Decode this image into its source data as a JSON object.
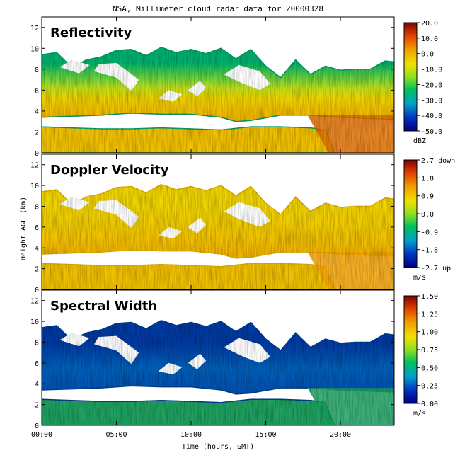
{
  "title": "NSA, Millimeter cloud radar data for 20000328",
  "xlabel": "Time (hours, GMT)",
  "ylabel": "Height AGL (km)",
  "chart_data": [
    {
      "type": "heatmap",
      "title": "Reflectivity",
      "xlabel": "Time (hours, GMT)",
      "ylabel": "Height AGL (km)",
      "x_ticks": [
        "00:00",
        "05:00",
        "10:00",
        "15:00",
        "20:00"
      ],
      "x_tick_values": [
        0,
        5,
        10,
        15,
        20
      ],
      "xlim": [
        0,
        23.6
      ],
      "y_ticks": [
        "0",
        "2",
        "4",
        "6",
        "8",
        "10",
        "12"
      ],
      "y_tick_values": [
        0,
        2,
        4,
        6,
        8,
        10,
        12
      ],
      "ylim": [
        0,
        13
      ],
      "colorbar": {
        "ticks": [
          "20.0",
          "10.0",
          "0.0",
          "-10.0",
          "-20.0",
          "-30.0",
          "-40.0",
          "-50.0"
        ],
        "range": [
          -50,
          20
        ],
        "unit": "dBZ"
      }
    },
    {
      "type": "heatmap",
      "title": "Doppler Velocity",
      "xlabel": "Time (hours, GMT)",
      "ylabel": "Height AGL (km)",
      "x_ticks": [
        "00:00",
        "05:00",
        "10:00",
        "15:00",
        "20:00"
      ],
      "x_tick_values": [
        0,
        5,
        10,
        15,
        20
      ],
      "xlim": [
        0,
        23.6
      ],
      "y_ticks": [
        "0",
        "2",
        "4",
        "6",
        "8",
        "10",
        "12"
      ],
      "y_tick_values": [
        0,
        2,
        4,
        6,
        8,
        10,
        12
      ],
      "ylim": [
        0,
        13
      ],
      "colorbar": {
        "ticks": [
          "2.7 down",
          "1.8",
          "0.9",
          "0.0",
          "-0.9",
          "-1.8",
          "-2.7 up"
        ],
        "range": [
          -2.7,
          2.7
        ],
        "unit": "m/s"
      }
    },
    {
      "type": "heatmap",
      "title": "Spectral Width",
      "xlabel": "Time (hours, GMT)",
      "ylabel": "Height AGL (km)",
      "x_ticks": [
        "00:00",
        "05:00",
        "10:00",
        "15:00",
        "20:00"
      ],
      "x_tick_values": [
        0,
        5,
        10,
        15,
        20
      ],
      "xlim": [
        0,
        23.6
      ],
      "y_ticks": [
        "0",
        "2",
        "4",
        "6",
        "8",
        "10",
        "12"
      ],
      "y_tick_values": [
        0,
        2,
        4,
        6,
        8,
        10,
        12
      ],
      "ylim": [
        0,
        13
      ],
      "colorbar": {
        "ticks": [
          "1.50",
          "1.25",
          "1.00",
          "0.75",
          "0.50",
          "0.25",
          "0.00"
        ],
        "range": [
          0,
          1.5
        ],
        "unit": "m/s"
      }
    }
  ]
}
